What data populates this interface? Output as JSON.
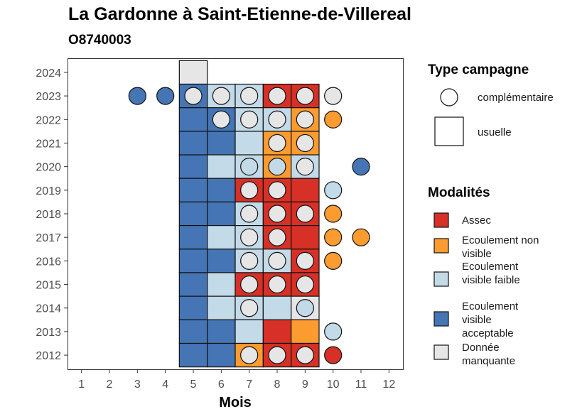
{
  "chart_data": {
    "type": "heatmap",
    "title": "La Gardonne à Saint-Etienne-de-Villereal",
    "subtitle": "O8740003",
    "xlabel": "Mois",
    "ylabel": "",
    "x_ticks": [
      1,
      2,
      3,
      4,
      5,
      6,
      7,
      8,
      9,
      10,
      11,
      12
    ],
    "y_ticks": [
      2012,
      2013,
      2014,
      2015,
      2016,
      2017,
      2018,
      2019,
      2020,
      2021,
      2022,
      2023,
      2024
    ],
    "xlim": [
      0.5,
      12.5
    ],
    "ylim": [
      2011.4,
      2024.6
    ],
    "legend_campagne": {
      "title": "Type campagne",
      "items": [
        {
          "shape": "circle",
          "label": "complémentaire"
        },
        {
          "shape": "square",
          "label": "usuelle"
        }
      ]
    },
    "legend_modalites": {
      "title": "Modalités",
      "items": [
        {
          "key": "A",
          "label": "Assec",
          "color": "#d73027"
        },
        {
          "key": "O",
          "label": "Ecoulement non visible",
          "color": "#fc9b30"
        },
        {
          "key": "F",
          "label": "Ecoulement visible faible",
          "color": "#c3dae8"
        },
        {
          "key": "B",
          "label": "Ecoulement visible acceptable",
          "color": "#4575b4"
        },
        {
          "key": "M",
          "label": "Donnée manquante",
          "color": "#e6e6e6"
        }
      ]
    },
    "usuelle": [
      {
        "year": 2024,
        "month": 5,
        "modalite": "M"
      },
      {
        "year": 2023,
        "month": 5,
        "modalite": "B"
      },
      {
        "year": 2023,
        "month": 6,
        "modalite": "F"
      },
      {
        "year": 2023,
        "month": 7,
        "modalite": "F"
      },
      {
        "year": 2023,
        "month": 8,
        "modalite": "A"
      },
      {
        "year": 2023,
        "month": 9,
        "modalite": "A"
      },
      {
        "year": 2022,
        "month": 5,
        "modalite": "B"
      },
      {
        "year": 2022,
        "month": 6,
        "modalite": "B"
      },
      {
        "year": 2022,
        "month": 7,
        "modalite": "F"
      },
      {
        "year": 2022,
        "month": 8,
        "modalite": "F"
      },
      {
        "year": 2022,
        "month": 9,
        "modalite": "O"
      },
      {
        "year": 2021,
        "month": 5,
        "modalite": "B"
      },
      {
        "year": 2021,
        "month": 6,
        "modalite": "B"
      },
      {
        "year": 2021,
        "month": 7,
        "modalite": "F"
      },
      {
        "year": 2021,
        "month": 8,
        "modalite": "O"
      },
      {
        "year": 2021,
        "month": 9,
        "modalite": "O"
      },
      {
        "year": 2020,
        "month": 5,
        "modalite": "B"
      },
      {
        "year": 2020,
        "month": 6,
        "modalite": "F"
      },
      {
        "year": 2020,
        "month": 7,
        "modalite": "F"
      },
      {
        "year": 2020,
        "month": 8,
        "modalite": "O"
      },
      {
        "year": 2020,
        "month": 9,
        "modalite": "F"
      },
      {
        "year": 2019,
        "month": 5,
        "modalite": "B"
      },
      {
        "year": 2019,
        "month": 6,
        "modalite": "B"
      },
      {
        "year": 2019,
        "month": 7,
        "modalite": "A"
      },
      {
        "year": 2019,
        "month": 8,
        "modalite": "A"
      },
      {
        "year": 2019,
        "month": 9,
        "modalite": "A"
      },
      {
        "year": 2018,
        "month": 5,
        "modalite": "B"
      },
      {
        "year": 2018,
        "month": 6,
        "modalite": "B"
      },
      {
        "year": 2018,
        "month": 7,
        "modalite": "F"
      },
      {
        "year": 2018,
        "month": 8,
        "modalite": "A"
      },
      {
        "year": 2018,
        "month": 9,
        "modalite": "A"
      },
      {
        "year": 2017,
        "month": 5,
        "modalite": "B"
      },
      {
        "year": 2017,
        "month": 6,
        "modalite": "F"
      },
      {
        "year": 2017,
        "month": 7,
        "modalite": "F"
      },
      {
        "year": 2017,
        "month": 8,
        "modalite": "A"
      },
      {
        "year": 2017,
        "month": 9,
        "modalite": "A"
      },
      {
        "year": 2016,
        "month": 5,
        "modalite": "B"
      },
      {
        "year": 2016,
        "month": 6,
        "modalite": "B"
      },
      {
        "year": 2016,
        "month": 7,
        "modalite": "F"
      },
      {
        "year": 2016,
        "month": 8,
        "modalite": "F"
      },
      {
        "year": 2016,
        "month": 9,
        "modalite": "A"
      },
      {
        "year": 2015,
        "month": 5,
        "modalite": "B"
      },
      {
        "year": 2015,
        "month": 6,
        "modalite": "F"
      },
      {
        "year": 2015,
        "month": 7,
        "modalite": "A"
      },
      {
        "year": 2015,
        "month": 8,
        "modalite": "A"
      },
      {
        "year": 2015,
        "month": 9,
        "modalite": "A"
      },
      {
        "year": 2014,
        "month": 5,
        "modalite": "B"
      },
      {
        "year": 2014,
        "month": 6,
        "modalite": "F"
      },
      {
        "year": 2014,
        "month": 7,
        "modalite": "F"
      },
      {
        "year": 2014,
        "month": 8,
        "modalite": "F"
      },
      {
        "year": 2014,
        "month": 9,
        "modalite": "M"
      },
      {
        "year": 2013,
        "month": 5,
        "modalite": "B"
      },
      {
        "year": 2013,
        "month": 6,
        "modalite": "B"
      },
      {
        "year": 2013,
        "month": 7,
        "modalite": "F"
      },
      {
        "year": 2013,
        "month": 8,
        "modalite": "A"
      },
      {
        "year": 2013,
        "month": 9,
        "modalite": "O"
      },
      {
        "year": 2012,
        "month": 5,
        "modalite": "B"
      },
      {
        "year": 2012,
        "month": 6,
        "modalite": "B"
      },
      {
        "year": 2012,
        "month": 7,
        "modalite": "O"
      },
      {
        "year": 2012,
        "month": 8,
        "modalite": "A"
      },
      {
        "year": 2012,
        "month": 9,
        "modalite": "A"
      }
    ],
    "complementaire": [
      {
        "year": 2023,
        "month": 3,
        "modalite": "B"
      },
      {
        "year": 2023,
        "month": 4,
        "modalite": "B"
      },
      {
        "year": 2023,
        "month": 5,
        "modalite": "M"
      },
      {
        "year": 2023,
        "month": 6,
        "modalite": "M"
      },
      {
        "year": 2023,
        "month": 7,
        "modalite": "M"
      },
      {
        "year": 2023,
        "month": 8,
        "modalite": "M"
      },
      {
        "year": 2023,
        "month": 9,
        "modalite": "M"
      },
      {
        "year": 2023,
        "month": 10,
        "modalite": "M"
      },
      {
        "year": 2022,
        "month": 6,
        "modalite": "M"
      },
      {
        "year": 2022,
        "month": 7,
        "modalite": "M"
      },
      {
        "year": 2022,
        "month": 8,
        "modalite": "M"
      },
      {
        "year": 2022,
        "month": 9,
        "modalite": "M"
      },
      {
        "year": 2022,
        "month": 10,
        "modalite": "O"
      },
      {
        "year": 2021,
        "month": 8,
        "modalite": "M"
      },
      {
        "year": 2021,
        "month": 9,
        "modalite": "M"
      },
      {
        "year": 2020,
        "month": 7,
        "modalite": "F"
      },
      {
        "year": 2020,
        "month": 8,
        "modalite": "F"
      },
      {
        "year": 2020,
        "month": 9,
        "modalite": "M"
      },
      {
        "year": 2020,
        "month": 11,
        "modalite": "B"
      },
      {
        "year": 2019,
        "month": 7,
        "modalite": "M"
      },
      {
        "year": 2019,
        "month": 8,
        "modalite": "M"
      },
      {
        "year": 2019,
        "month": 10,
        "modalite": "F"
      },
      {
        "year": 2018,
        "month": 7,
        "modalite": "M"
      },
      {
        "year": 2018,
        "month": 8,
        "modalite": "M"
      },
      {
        "year": 2018,
        "month": 9,
        "modalite": "M"
      },
      {
        "year": 2018,
        "month": 10,
        "modalite": "O"
      },
      {
        "year": 2017,
        "month": 7,
        "modalite": "M"
      },
      {
        "year": 2017,
        "month": 8,
        "modalite": "M"
      },
      {
        "year": 2017,
        "month": 10,
        "modalite": "O"
      },
      {
        "year": 2017,
        "month": 11,
        "modalite": "O"
      },
      {
        "year": 2016,
        "month": 7,
        "modalite": "M"
      },
      {
        "year": 2016,
        "month": 8,
        "modalite": "M"
      },
      {
        "year": 2016,
        "month": 9,
        "modalite": "M"
      },
      {
        "year": 2016,
        "month": 10,
        "modalite": "O"
      },
      {
        "year": 2015,
        "month": 7,
        "modalite": "M"
      },
      {
        "year": 2015,
        "month": 8,
        "modalite": "M"
      },
      {
        "year": 2015,
        "month": 9,
        "modalite": "M"
      },
      {
        "year": 2014,
        "month": 7,
        "modalite": "M"
      },
      {
        "year": 2014,
        "month": 9,
        "modalite": "F"
      },
      {
        "year": 2013,
        "month": 10,
        "modalite": "F"
      },
      {
        "year": 2012,
        "month": 7,
        "modalite": "M"
      },
      {
        "year": 2012,
        "month": 8,
        "modalite": "M"
      },
      {
        "year": 2012,
        "month": 9,
        "modalite": "M"
      },
      {
        "year": 2012,
        "month": 10,
        "modalite": "A"
      }
    ]
  }
}
